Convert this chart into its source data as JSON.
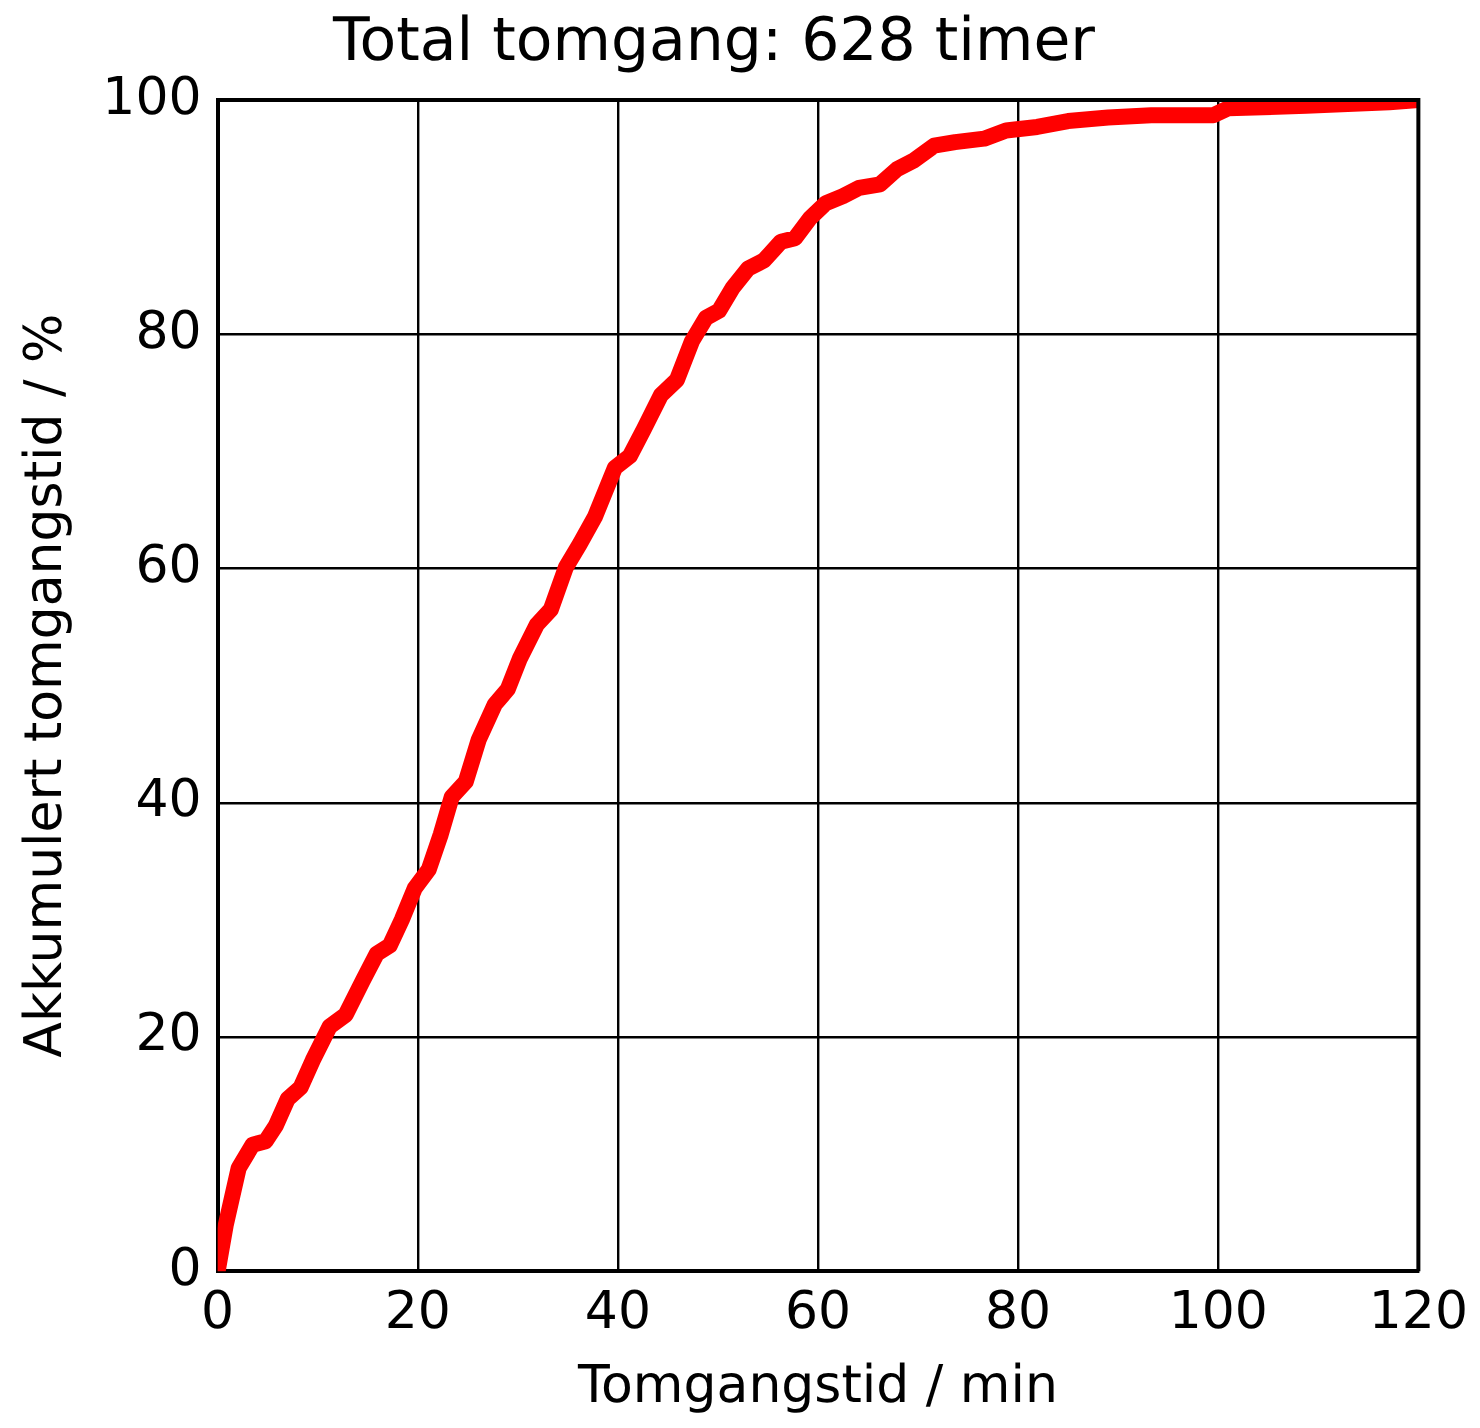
{
  "chart_data": {
    "type": "line",
    "title": "Total tomgang: 628 timer",
    "xlabel": "Tomgangstid / min",
    "ylabel": "Akkumulert tomgangstid / %",
    "x": [
      0,
      0.8,
      2.1,
      3.5,
      4.8,
      5.8,
      7,
      8.3,
      9.5,
      11.2,
      12.8,
      14.5,
      15.9,
      17.2,
      18.4,
      19.7,
      21.1,
      22.3,
      23.4,
      24.8,
      26.1,
      27.7,
      29,
      30.2,
      31.9,
      33.3,
      34.8,
      36.2,
      37.7,
      39.7,
      41.2,
      42.6,
      44.3,
      45.9,
      47.4,
      48.8,
      50.1,
      51.5,
      53,
      54.6,
      56.3,
      57.7,
      59.2,
      60.8,
      62.5,
      64.1,
      66.2,
      67.9,
      69.5,
      71.6,
      73.7,
      76.6,
      78.8,
      81.9,
      85,
      89,
      93.3,
      99.5,
      101,
      108.8,
      117.1,
      120
    ],
    "values": [
      0,
      3.9,
      8.8,
      10.8,
      11.1,
      12.4,
      14.7,
      15.7,
      18,
      20.9,
      21.9,
      24.8,
      27.1,
      27.8,
      30,
      32.7,
      34.3,
      37.3,
      40.5,
      41.8,
      45.4,
      48.4,
      49.7,
      52.3,
      55.2,
      56.5,
      60.1,
      62.1,
      64.4,
      68.6,
      69.6,
      71.9,
      74.8,
      76.1,
      79.4,
      81.4,
      82,
      84,
      85.6,
      86.3,
      87.9,
      88.2,
      89.9,
      91.2,
      91.8,
      92.5,
      92.8,
      94.1,
      94.8,
      96.1,
      96.4,
      96.7,
      97.4,
      97.7,
      98.2,
      98.5,
      98.7,
      98.7,
      99.3,
      99.5,
      99.8,
      100
    ],
    "color": "#ff0000",
    "xlim": [
      0,
      120
    ],
    "ylim": [
      0,
      100
    ],
    "xticks": [
      0,
      20,
      40,
      60,
      80,
      100,
      120
    ],
    "yticks": [
      0,
      20,
      40,
      60,
      80,
      100
    ],
    "grid": true
  }
}
